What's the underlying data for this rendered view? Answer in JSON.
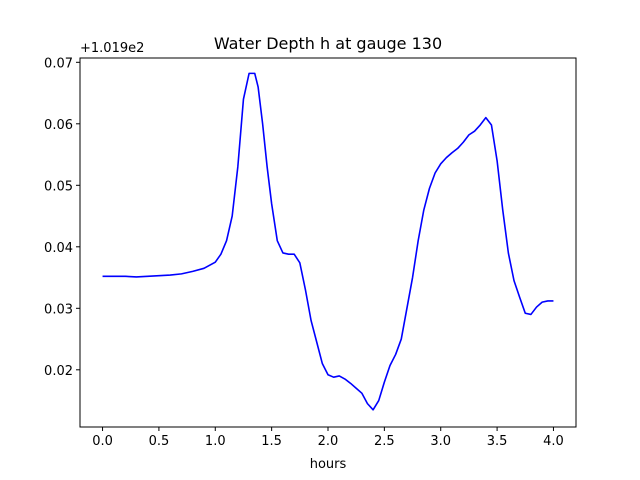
{
  "chart_data": {
    "type": "line",
    "title": "Water Depth h at gauge 130",
    "xlabel": "hours",
    "ylabel": "",
    "offset_label": "+1.019e2",
    "xlim": [
      -0.2,
      4.2
    ],
    "ylim": [
      0.0107,
      0.0707
    ],
    "grid": false,
    "xticks": [
      0.0,
      0.5,
      1.0,
      1.5,
      2.0,
      2.5,
      3.0,
      3.5,
      4.0
    ],
    "xtick_labels": [
      "0.0",
      "0.5",
      "1.0",
      "1.5",
      "2.0",
      "2.5",
      "3.0",
      "3.5",
      "4.0"
    ],
    "yticks": [
      0.02,
      0.03,
      0.04,
      0.05,
      0.06,
      0.07
    ],
    "ytick_labels": [
      "0.02",
      "0.03",
      "0.04",
      "0.05",
      "0.06",
      "0.07"
    ],
    "series": [
      {
        "color": "#0000ff",
        "x": [
          0.0,
          0.1,
          0.2,
          0.3,
          0.4,
          0.5,
          0.6,
          0.7,
          0.8,
          0.9,
          1.0,
          1.05,
          1.1,
          1.15,
          1.2,
          1.25,
          1.3,
          1.35,
          1.38,
          1.42,
          1.46,
          1.5,
          1.55,
          1.6,
          1.65,
          1.7,
          1.75,
          1.8,
          1.85,
          1.9,
          1.95,
          2.0,
          2.05,
          2.1,
          2.15,
          2.2,
          2.25,
          2.3,
          2.35,
          2.4,
          2.45,
          2.5,
          2.55,
          2.6,
          2.65,
          2.7,
          2.75,
          2.8,
          2.85,
          2.9,
          2.95,
          3.0,
          3.05,
          3.1,
          3.15,
          3.2,
          3.25,
          3.3,
          3.35,
          3.4,
          3.45,
          3.5,
          3.55,
          3.6,
          3.65,
          3.7,
          3.75,
          3.8,
          3.85,
          3.9,
          3.95,
          4.0
        ],
        "y": [
          0.0352,
          0.0352,
          0.0352,
          0.0351,
          0.0352,
          0.0353,
          0.0354,
          0.0356,
          0.036,
          0.0365,
          0.0375,
          0.0388,
          0.041,
          0.045,
          0.053,
          0.064,
          0.0682,
          0.0682,
          0.066,
          0.06,
          0.053,
          0.047,
          0.041,
          0.039,
          0.0388,
          0.0388,
          0.0374,
          0.033,
          0.028,
          0.0245,
          0.021,
          0.0192,
          0.0188,
          0.019,
          0.0185,
          0.0178,
          0.017,
          0.0162,
          0.0145,
          0.0135,
          0.015,
          0.018,
          0.0207,
          0.0225,
          0.025,
          0.03,
          0.035,
          0.041,
          0.046,
          0.0495,
          0.052,
          0.0535,
          0.0545,
          0.0553,
          0.056,
          0.057,
          0.0582,
          0.0588,
          0.0598,
          0.061,
          0.0598,
          0.054,
          0.046,
          0.039,
          0.0345,
          0.0318,
          0.0292,
          0.029,
          0.0302,
          0.031,
          0.0312,
          0.0312
        ]
      }
    ]
  }
}
